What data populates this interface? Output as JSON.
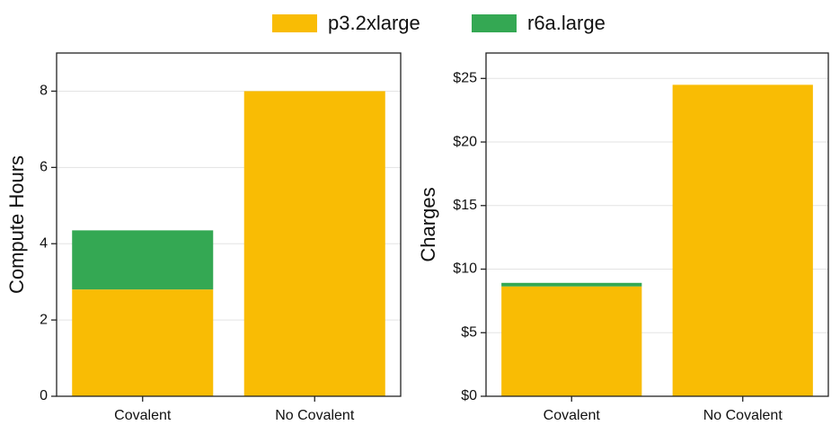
{
  "legend": [
    {
      "name": "p3.2xlarge",
      "color": "#f9bc04"
    },
    {
      "name": "r6a.large",
      "color": "#34a853"
    }
  ],
  "chart_data": [
    {
      "type": "stacked_bar",
      "y_label": "Compute Hours",
      "categories": [
        "Covalent",
        "No Covalent"
      ],
      "series": [
        {
          "color": "#f9bc04",
          "values": [
            2.8,
            8.0
          ]
        },
        {
          "color": "#34a853",
          "values": [
            1.55,
            0
          ]
        }
      ],
      "ylim": [
        0,
        9
      ],
      "yticks": [
        0,
        2,
        4,
        6,
        8
      ],
      "grid": true
    },
    {
      "type": "stacked_bar",
      "y_label": "Charges",
      "categories": [
        "Covalent",
        "No Covalent"
      ],
      "series": [
        {
          "color": "#f9bc04",
          "values": [
            8.64,
            24.5
          ]
        },
        {
          "color": "#34a853",
          "values": [
            0.28,
            0
          ]
        }
      ],
      "ylim": [
        0,
        27
      ],
      "yticks": [
        {
          "value": 0,
          "label": "$0"
        },
        {
          "value": 5,
          "label": "$5"
        },
        {
          "value": 10,
          "label": "$10"
        },
        {
          "value": 15,
          "label": "$15"
        },
        {
          "value": 20,
          "label": "$20"
        },
        {
          "value": 25,
          "label": "$25"
        }
      ],
      "grid": true
    }
  ]
}
